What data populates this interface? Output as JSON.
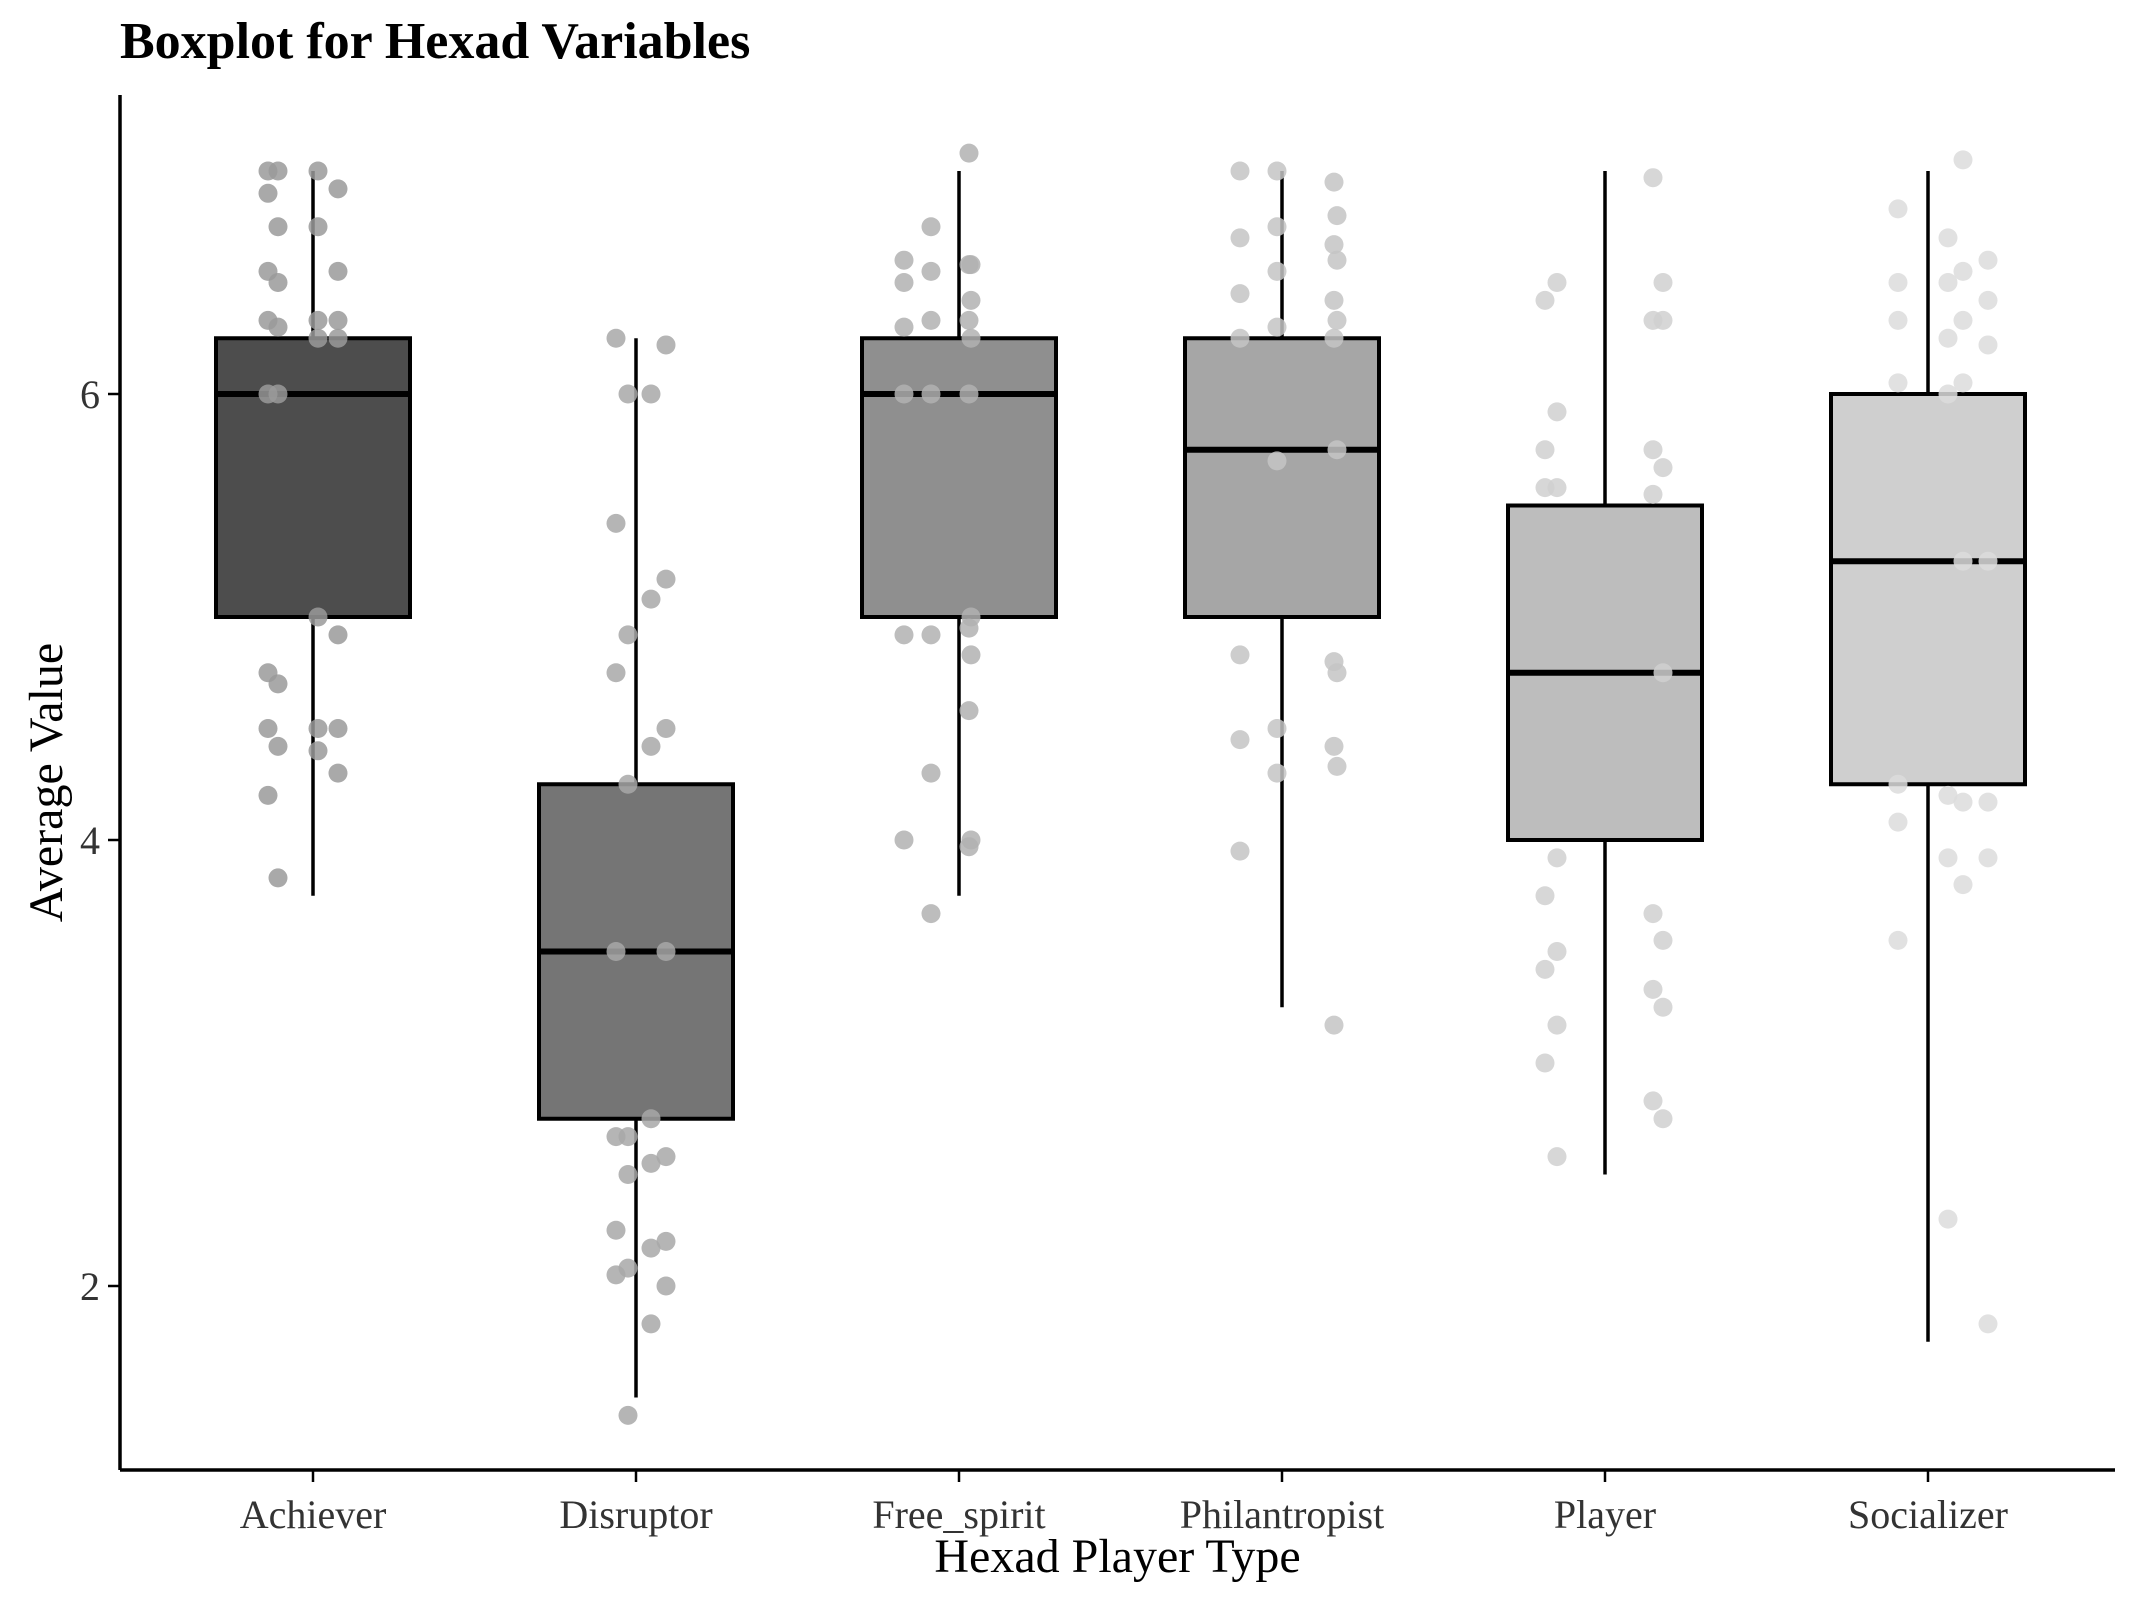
{
  "chart_data": {
    "type": "boxplot",
    "title": "Boxplot for Hexad Variables",
    "xlabel": "Hexad Player Type",
    "ylabel": "Average Value",
    "ylim": [
      1.2,
      7.3
    ],
    "yticks": [
      2,
      4,
      6
    ],
    "grid": false,
    "categories": [
      "Achiever",
      "Disruptor",
      "Free_spirit",
      "Philantropist",
      "Player",
      "Socializer"
    ],
    "series": [
      {
        "name": "Achiever",
        "fill": "#4d4d4d",
        "point_color": "#9a9a9a",
        "whisker_low": 3.75,
        "q1": 5.0,
        "median": 6.0,
        "q3": 6.25,
        "whisker_high": 7.0,
        "points": [
          7.0,
          7.0,
          7.0,
          6.92,
          6.9,
          6.75,
          6.75,
          6.55,
          6.55,
          6.5,
          6.33,
          6.33,
          6.33,
          6.3,
          6.25,
          6.25,
          6.0,
          6.0,
          5.0,
          4.92,
          4.75,
          4.7,
          4.5,
          4.5,
          4.5,
          4.42,
          4.4,
          4.3,
          4.2,
          3.83
        ]
      },
      {
        "name": "Disruptor",
        "fill": "#757575",
        "point_color": "#a8a8a8",
        "whisker_low": 1.5,
        "q1": 2.75,
        "median": 3.5,
        "q3": 4.25,
        "whisker_high": 6.25,
        "points": [
          6.25,
          6.22,
          6.0,
          6.0,
          5.42,
          5.17,
          5.08,
          4.92,
          4.75,
          4.5,
          4.42,
          4.25,
          3.5,
          3.5,
          2.75,
          2.67,
          2.67,
          2.58,
          2.55,
          2.5,
          2.25,
          2.2,
          2.17,
          2.08,
          2.05,
          2.0,
          1.83,
          1.42
        ]
      },
      {
        "name": "Free_spirit",
        "fill": "#8f8f8f",
        "point_color": "#b2b2b2",
        "whisker_low": 3.75,
        "q1": 5.0,
        "median": 6.0,
        "q3": 6.25,
        "whisker_high": 7.0,
        "points": [
          7.08,
          6.75,
          6.6,
          6.58,
          6.58,
          6.55,
          6.5,
          6.42,
          6.33,
          6.33,
          6.3,
          6.25,
          6.0,
          6.0,
          6.0,
          5.0,
          4.95,
          4.92,
          4.92,
          4.83,
          4.58,
          4.3,
          4.0,
          4.0,
          3.97,
          3.67
        ]
      },
      {
        "name": "Philantropist",
        "fill": "#a6a6a6",
        "point_color": "#c4c4c4",
        "whisker_low": 3.25,
        "q1": 5.0,
        "median": 5.75,
        "q3": 6.25,
        "whisker_high": 7.0,
        "points": [
          7.0,
          7.0,
          6.95,
          6.8,
          6.75,
          6.7,
          6.67,
          6.6,
          6.55,
          6.45,
          6.42,
          6.33,
          6.3,
          6.25,
          6.25,
          5.75,
          5.7,
          4.83,
          4.8,
          4.75,
          4.5,
          4.45,
          4.42,
          4.33,
          4.3,
          3.95,
          3.17
        ]
      },
      {
        "name": "Player",
        "fill": "#bdbdbd",
        "point_color": "#d0d0d0",
        "whisker_low": 2.5,
        "q1": 4.0,
        "median": 4.75,
        "q3": 5.5,
        "whisker_high": 7.0,
        "points": [
          6.97,
          6.5,
          6.5,
          6.42,
          6.33,
          6.33,
          5.92,
          5.75,
          5.75,
          5.67,
          5.58,
          5.58,
          5.55,
          4.75,
          3.92,
          3.75,
          3.67,
          3.55,
          3.5,
          3.42,
          3.33,
          3.25,
          3.17,
          3.0,
          2.83,
          2.75,
          2.58
        ]
      },
      {
        "name": "Socializer",
        "fill": "#cfcfcf",
        "point_color": "#dcdcdc",
        "whisker_low": 1.75,
        "q1": 4.25,
        "median": 5.25,
        "q3": 6.0,
        "whisker_high": 7.0,
        "points": [
          7.05,
          6.83,
          6.7,
          6.6,
          6.55,
          6.5,
          6.5,
          6.42,
          6.33,
          6.33,
          6.25,
          6.22,
          6.05,
          6.05,
          6.0,
          5.25,
          5.25,
          4.25,
          4.2,
          4.17,
          4.17,
          4.08,
          3.92,
          3.92,
          3.8,
          3.55,
          2.3,
          1.83
        ]
      }
    ]
  }
}
